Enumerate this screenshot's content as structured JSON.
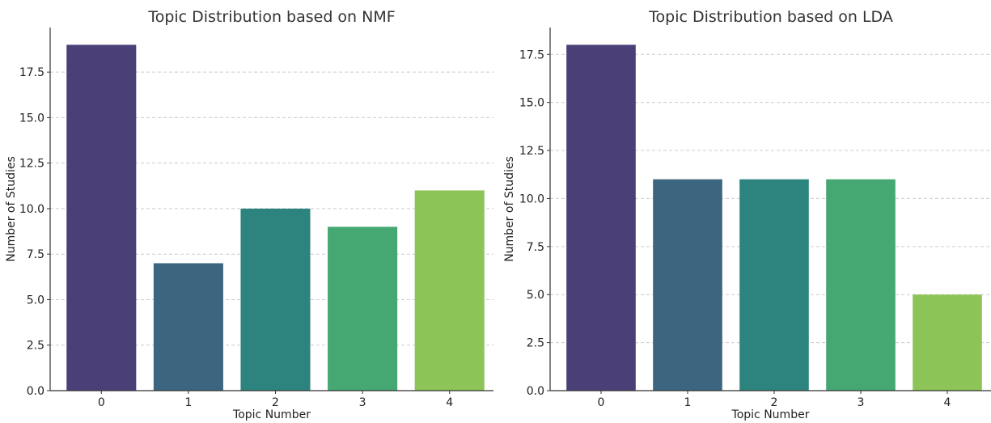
{
  "chart_data": [
    {
      "type": "bar",
      "title": "Topic Distribution based on NMF",
      "xlabel": "Topic Number",
      "ylabel": "Number of Studies",
      "categories": [
        "0",
        "1",
        "2",
        "3",
        "4"
      ],
      "values": [
        19,
        7,
        10,
        9,
        11
      ],
      "ylim": [
        0,
        19.95
      ],
      "yticks": [
        "0.0",
        "2.5",
        "5.0",
        "7.5",
        "10.0",
        "12.5",
        "15.0",
        "17.5"
      ],
      "ytick_values": [
        0,
        2.5,
        5,
        7.5,
        10,
        12.5,
        15,
        17.5
      ],
      "grid": "y-dashed",
      "colors": [
        "#4b3f78",
        "#3c657f",
        "#2d837e",
        "#45a872",
        "#8dc457"
      ]
    },
    {
      "type": "bar",
      "title": "Topic Distribution based on LDA",
      "xlabel": "Topic Number",
      "ylabel": "Number of Studies",
      "categories": [
        "0",
        "1",
        "2",
        "3",
        "4"
      ],
      "values": [
        18,
        11,
        11,
        11,
        5
      ],
      "ylim": [
        0,
        18.9
      ],
      "yticks": [
        "0.0",
        "2.5",
        "5.0",
        "7.5",
        "10.0",
        "12.5",
        "15.0",
        "17.5"
      ],
      "ytick_values": [
        0,
        2.5,
        5,
        7.5,
        10,
        12.5,
        15,
        17.5
      ],
      "grid": "y-dashed",
      "colors": [
        "#4b3f78",
        "#3c657f",
        "#2d837e",
        "#45a872",
        "#8dc457"
      ]
    }
  ]
}
